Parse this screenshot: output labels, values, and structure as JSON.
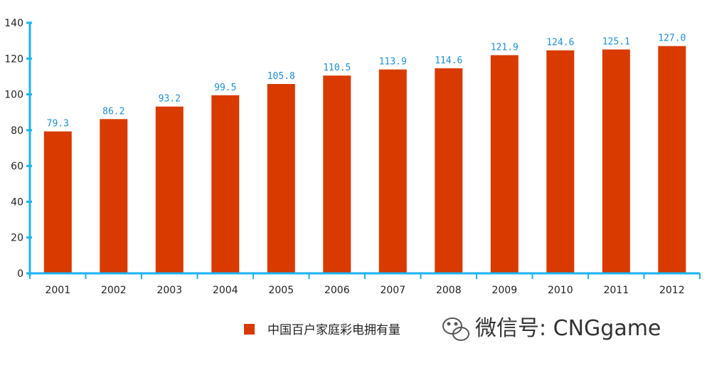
{
  "chart_data": {
    "type": "bar",
    "categories": [
      "2001",
      "2002",
      "2003",
      "2004",
      "2005",
      "2006",
      "2007",
      "2008",
      "2009",
      "2010",
      "2011",
      "2012"
    ],
    "series": [
      {
        "name": "中国百户家庭彩电拥有量",
        "values": [
          79.3,
          86.2,
          93.2,
          99.5,
          105.8,
          110.5,
          113.9,
          114.6,
          121.9,
          124.6,
          125.1,
          127.0
        ],
        "labels": [
          "79.3",
          "86.2",
          "93.2",
          "99.5",
          "105.8",
          "110.5",
          "113.9",
          "114.6",
          "121.9",
          "124.6",
          "125.1",
          "127.0"
        ]
      }
    ],
    "ylim": [
      0,
      140
    ],
    "yticks": [
      0,
      20,
      40,
      60,
      80,
      100,
      120,
      140
    ],
    "title": "",
    "xlabel": "",
    "ylabel": "",
    "grid": false,
    "legend_position": "bottom-right",
    "colors": {
      "bar": "#d93a00",
      "axis": "#1ab3f0",
      "data_label": "#1a8fe0"
    }
  },
  "watermark": {
    "text": "微信号: CNGgame",
    "icon": "wechat-icon"
  }
}
